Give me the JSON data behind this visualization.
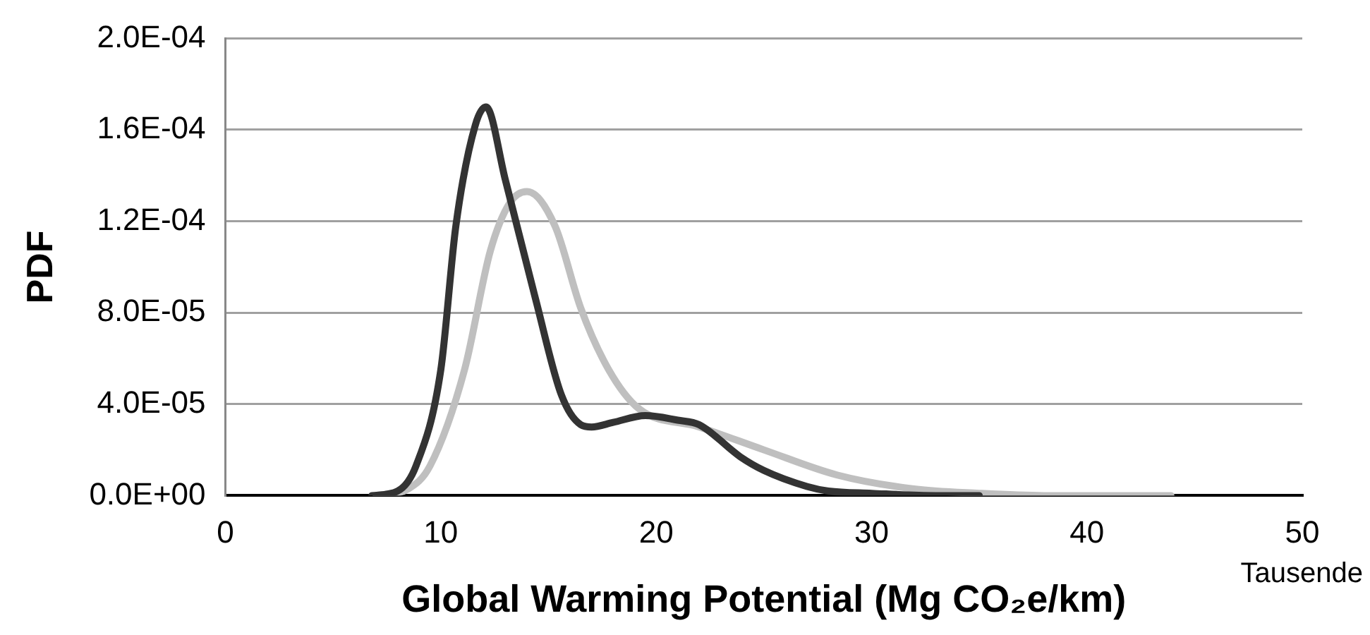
{
  "chart_data": {
    "type": "line",
    "xlabel": "Global Warming Potential (Mg CO₂e/km)",
    "ylabel": "PDF",
    "annotations": [
      "Tausende"
    ],
    "xlim": [
      0,
      50
    ],
    "xticks": [
      0,
      10,
      20,
      30,
      40,
      50
    ],
    "ylim": [
      0,
      0.0002
    ],
    "yticks": [
      {
        "value": 0,
        "label": "0.0E+00"
      },
      {
        "value": 4e-05,
        "label": "4.0E-05"
      },
      {
        "value": 8e-05,
        "label": "8.0E-05"
      },
      {
        "value": 0.00012,
        "label": "1.2E-04"
      },
      {
        "value": 0.00016,
        "label": "1.6E-04"
      },
      {
        "value": 0.0002,
        "label": "2.0E-04"
      }
    ],
    "grid": "y",
    "legend": false,
    "marker": "none",
    "line_style": "solid",
    "series": [
      {
        "color": "#333333",
        "x": [
          6.8,
          8,
          8.85,
          10,
          10.7,
          11.6,
          12.1,
          13,
          14.4,
          15.6,
          16.5,
          17,
          18,
          19.5,
          21,
          22,
          23.9,
          25,
          27,
          28,
          30,
          33,
          35
        ],
        "values": [
          0,
          2e-06,
          1.3e-05,
          5.5e-05,
          0.000118,
          0.000162,
          0.00017,
          0.000138,
          8.6e-05,
          4.4e-05,
          3.1e-05,
          3e-05,
          3.2e-05,
          3.5e-05,
          3.3e-05,
          3.1e-05,
          1.7e-05,
          1.1e-05,
          4e-06,
          2e-06,
          1e-06,
          0,
          0
        ]
      },
      {
        "color": "#bfbfbf",
        "x": [
          7,
          8.5,
          9.5,
          11.1,
          12.3,
          13.2,
          14,
          15.3,
          16.5,
          17.8,
          19.2,
          22,
          25,
          28.4,
          31.9,
          35,
          38,
          41,
          43.9
        ],
        "values": [
          0,
          3e-06,
          1.3e-05,
          5.5e-05,
          0.000107,
          0.000128,
          0.000133,
          0.000118,
          8.2e-05,
          5.5e-05,
          3.8e-05,
          3e-05,
          2e-05,
          9e-06,
          3e-06,
          1e-06,
          0,
          0,
          0
        ]
      }
    ]
  }
}
